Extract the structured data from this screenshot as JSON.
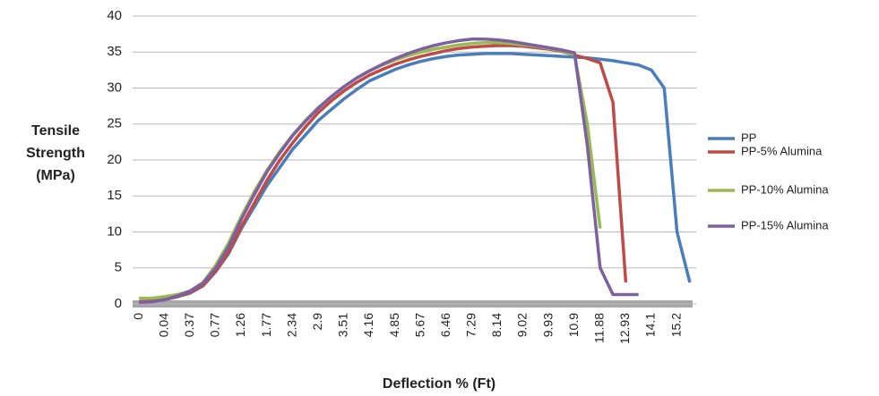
{
  "chart_data": {
    "type": "line",
    "y_label": [
      "Tensile",
      "Strength",
      "(MPa)"
    ],
    "x_label": "Deflection % (Ft)",
    "categories": [
      "0",
      null,
      "0.04",
      null,
      "0.37",
      null,
      "0.77",
      null,
      "1.26",
      null,
      "1.77",
      null,
      "2.34",
      null,
      "2.9",
      null,
      "3.51",
      null,
      "4.16",
      null,
      "4.85",
      null,
      "5.67",
      null,
      "6.46",
      null,
      "7.29",
      null,
      "8.14",
      null,
      "9.02",
      null,
      "9.93",
      null,
      "10.9",
      null,
      "11.88",
      null,
      "12.93",
      null,
      "14.1",
      null,
      "15.2",
      null
    ],
    "ylim": [
      0,
      40
    ],
    "yticks": [
      0,
      5,
      10,
      15,
      20,
      25,
      30,
      35,
      40
    ],
    "grid": true,
    "legend": "right",
    "series": [
      {
        "name": "PP",
        "color": "#4a7ebb",
        "values": [
          0.3,
          0.4,
          0.6,
          1,
          1.5,
          2.5,
          4.5,
          7,
          10.5,
          13.5,
          16.5,
          19,
          21.5,
          23.5,
          25.5,
          27,
          28.5,
          29.8,
          31,
          31.8,
          32.6,
          33.2,
          33.7,
          34.1,
          34.4,
          34.6,
          34.7,
          34.8,
          34.8,
          34.8,
          34.7,
          34.6,
          34.5,
          34.4,
          34.3,
          34.2,
          34,
          33.8,
          33.5,
          33.2,
          32.5,
          30,
          10,
          3
        ]
      },
      {
        "name": "PP-5% Alumina",
        "color": "#be4b48",
        "values": [
          0.3,
          0.4,
          0.6,
          1,
          1.6,
          2.6,
          4.6,
          7.2,
          10.8,
          14,
          17.2,
          20,
          22.4,
          24.6,
          26.6,
          28.2,
          29.6,
          30.8,
          31.8,
          32.6,
          33.3,
          33.9,
          34.4,
          34.8,
          35.2,
          35.5,
          35.7,
          35.8,
          35.9,
          35.9,
          35.8,
          35.6,
          35.4,
          35.1,
          34.6,
          34.1,
          33.5,
          28,
          3,
          null,
          null,
          null,
          null,
          null
        ]
      },
      {
        "name": "PP-10% Alumina",
        "color": "#98b954",
        "values": [
          0.8,
          0.8,
          1,
          1.3,
          1.8,
          3,
          5.4,
          8.5,
          12.2,
          15.6,
          18.6,
          21.2,
          23.5,
          25.5,
          27.3,
          28.8,
          30.2,
          31.4,
          32.4,
          33.2,
          33.9,
          34.5,
          35,
          35.4,
          35.7,
          36,
          36.2,
          36.3,
          36.3,
          36.2,
          36,
          35.8,
          35.5,
          35.2,
          34.6,
          25,
          10.5,
          null,
          null,
          null,
          null,
          null,
          null,
          null
        ]
      },
      {
        "name": "PP-15% Alumina",
        "color": "#7d60a0",
        "values": [
          0.2,
          0.3,
          0.6,
          1.1,
          1.8,
          2.9,
          5,
          8,
          11.8,
          15.2,
          18.4,
          21,
          23.4,
          25.4,
          27.2,
          28.8,
          30.2,
          31.4,
          32.4,
          33.3,
          34.1,
          34.8,
          35.4,
          35.9,
          36.3,
          36.6,
          36.8,
          36.8,
          36.7,
          36.5,
          36.2,
          35.9,
          35.6,
          35.3,
          34.9,
          22,
          5,
          1.3,
          1.3,
          1.3,
          null,
          null,
          null,
          null
        ]
      }
    ]
  }
}
